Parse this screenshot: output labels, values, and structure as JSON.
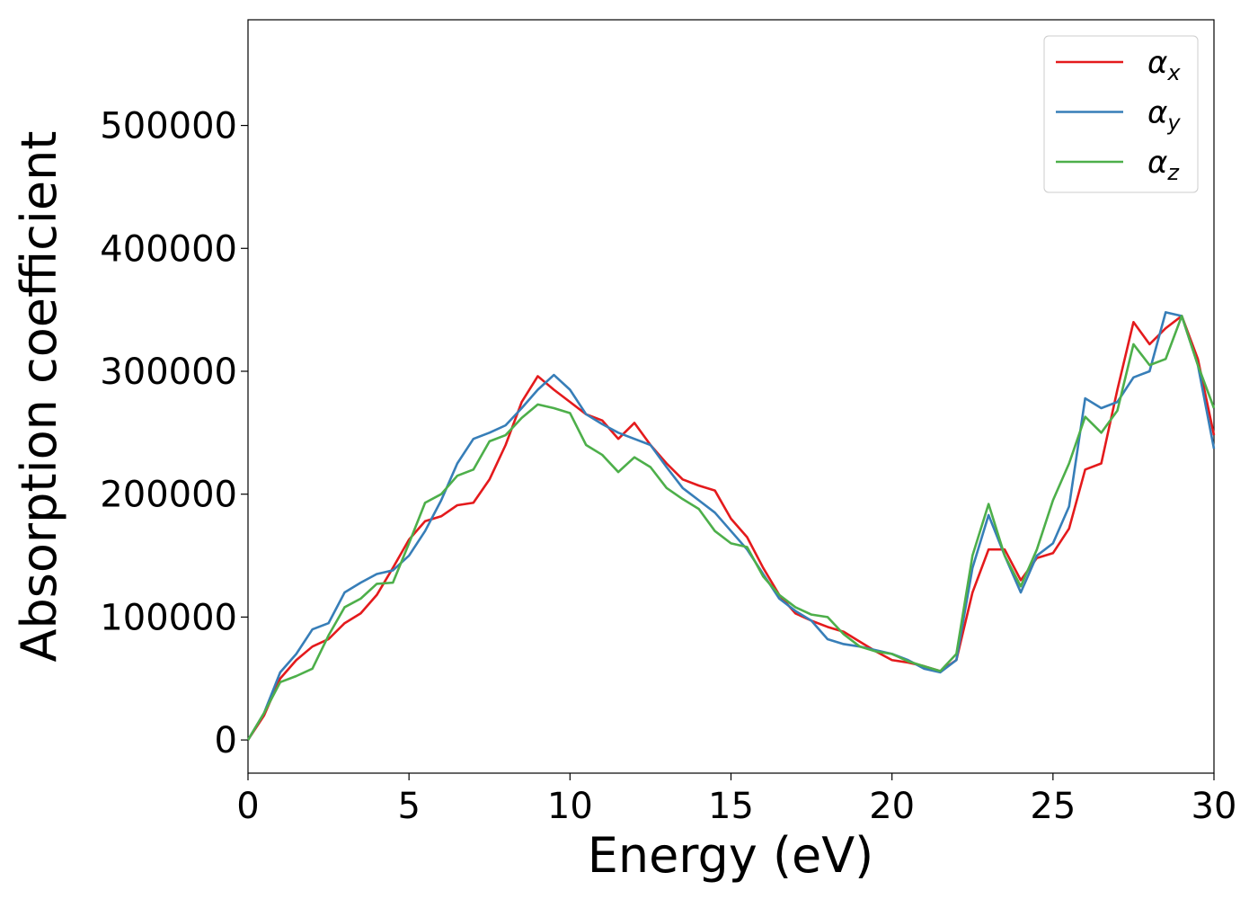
{
  "chart_data": {
    "type": "line",
    "x_label": "Energy (eV)",
    "y_label": "Absorption coefficient",
    "x": [
      0,
      0.5,
      1,
      1.5,
      2,
      2.5,
      3,
      3.5,
      4,
      4.5,
      5,
      5.5,
      6,
      6.5,
      7,
      7.5,
      8,
      8.5,
      9,
      9.5,
      10,
      10.5,
      11,
      11.5,
      12,
      12.5,
      13,
      13.5,
      14,
      14.5,
      15,
      15.5,
      16,
      16.5,
      17,
      17.5,
      18,
      18.5,
      19,
      19.5,
      20,
      20.5,
      21,
      21.5,
      22,
      22.5,
      23,
      23.5,
      24,
      24.5,
      25,
      25.5,
      26,
      26.5,
      27,
      27.5,
      28,
      28.5,
      29,
      29.5,
      30
    ],
    "series": [
      {
        "name": "αx",
        "color": "#e41a1c",
        "values": [
          0,
          20000,
          50000,
          65000,
          76000,
          82000,
          95000,
          103000,
          118000,
          140000,
          163000,
          178000,
          182000,
          191000,
          193000,
          212000,
          240000,
          275000,
          296000,
          285000,
          275000,
          265000,
          260000,
          245000,
          258000,
          240000,
          225000,
          212000,
          207000,
          203000,
          180000,
          165000,
          140000,
          118000,
          103000,
          97000,
          92000,
          88000,
          80000,
          72000,
          65000,
          63000,
          60000,
          56000,
          65000,
          120000,
          155000,
          155000,
          130000,
          148000,
          152000,
          172000,
          220000,
          225000,
          285000,
          340000,
          322000,
          335000,
          345000,
          310000,
          248000
        ]
      },
      {
        "name": "αy",
        "color": "#377eb8",
        "values": [
          0,
          22000,
          55000,
          70000,
          90000,
          95000,
          120000,
          128000,
          135000,
          138000,
          150000,
          170000,
          195000,
          225000,
          245000,
          250000,
          256000,
          270000,
          285000,
          297000,
          285000,
          265000,
          257000,
          250000,
          245000,
          240000,
          222000,
          205000,
          195000,
          185000,
          170000,
          155000,
          135000,
          115000,
          105000,
          97000,
          82000,
          78000,
          76000,
          73000,
          70000,
          65000,
          58000,
          55000,
          65000,
          140000,
          183000,
          150000,
          120000,
          150000,
          160000,
          190000,
          278000,
          270000,
          275000,
          295000,
          300000,
          348000,
          345000,
          305000,
          237000
        ]
      },
      {
        "name": "αz",
        "color": "#4daf4a",
        "values": [
          0,
          22000,
          47000,
          52000,
          58000,
          85000,
          108000,
          115000,
          127000,
          128000,
          160000,
          193000,
          200000,
          215000,
          220000,
          243000,
          248000,
          262000,
          273000,
          270000,
          266000,
          240000,
          232000,
          218000,
          230000,
          222000,
          205000,
          196000,
          188000,
          170000,
          160000,
          157000,
          133000,
          118000,
          108000,
          102000,
          100000,
          86000,
          76000,
          72000,
          70000,
          64000,
          60000,
          56000,
          70000,
          150000,
          192000,
          150000,
          125000,
          155000,
          195000,
          225000,
          263000,
          250000,
          268000,
          322000,
          305000,
          310000,
          345000,
          305000,
          270000
        ]
      }
    ],
    "xlim": [
      0,
      30
    ],
    "ylim": [
      -27000,
      586000
    ],
    "xticks": [
      0,
      5,
      10,
      15,
      20,
      25,
      30
    ],
    "yticks": [
      0,
      100000,
      200000,
      300000,
      400000,
      500000
    ],
    "grid": false,
    "legend": "upper right"
  }
}
